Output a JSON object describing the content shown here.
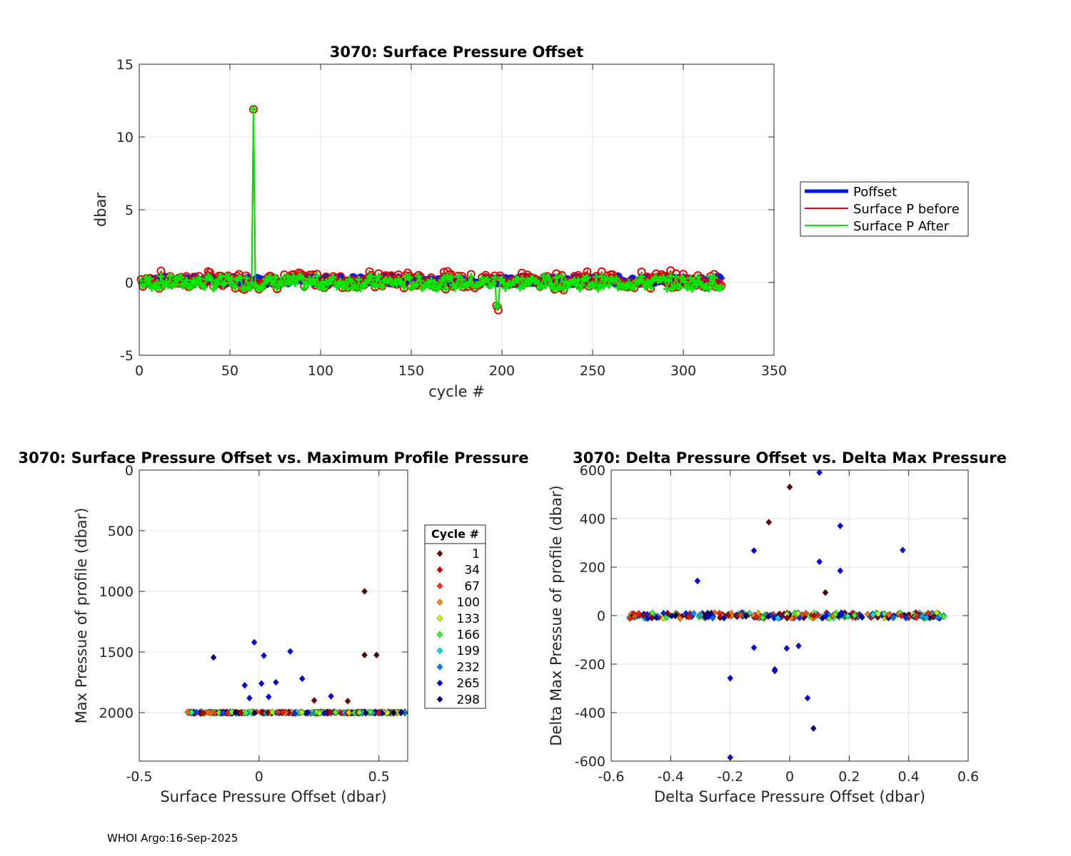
{
  "charts": {
    "top": {
      "type": "line",
      "title": "3070: Surface Pressure Offset",
      "xlabel": "cycle #",
      "ylabel": "dbar",
      "xlim": [
        0,
        350
      ],
      "ylim": [
        -5,
        15
      ],
      "xticks": [
        0,
        50,
        100,
        150,
        200,
        250,
        300,
        350
      ],
      "yticks": [
        -5,
        0,
        5,
        10,
        15
      ],
      "legend": [
        "Poffset",
        "Surface P before",
        "Surface P After"
      ],
      "legend_position": "outside-right",
      "cycle_range": [
        1,
        321
      ],
      "series_colors": [
        "#0018e6",
        "#e60000",
        "#00e600"
      ],
      "spikes": [
        {
          "cycle": 63,
          "value": 11.9
        },
        {
          "cycle": 197,
          "value": -1.6
        },
        {
          "cycle": 198,
          "value": -1.9
        }
      ]
    },
    "bottom_left": {
      "type": "scatter",
      "title": "3070: Surface Pressure Offset vs. Maximum Profile Pressure",
      "xlabel": "Surface Pressure Offset (dbar)",
      "ylabel": "Max Pressue of profile (dbar)",
      "xlim": [
        -0.5,
        0.62
      ],
      "ylim": [
        0,
        2400
      ],
      "y_reversed": true,
      "xticks": [
        -0.5,
        0,
        0.5
      ],
      "yticks": [
        0,
        500,
        1000,
        1500,
        2000
      ],
      "legend_title": "Cycle #",
      "legend": [
        "1",
        "34",
        "67",
        "100",
        "133",
        "166",
        "199",
        "232",
        "265",
        "298"
      ],
      "legend_colors": [
        "#5a0000",
        "#d90000",
        "#ff3300",
        "#ff8c00",
        "#ccff00",
        "#33ff33",
        "#00e5ff",
        "#0080ff",
        "#0000ff",
        "#000080"
      ],
      "outliers": [
        {
          "x": 0.44,
          "y": 1000,
          "cycle": 1
        },
        {
          "x": 0.44,
          "y": 1525,
          "cycle": 1
        },
        {
          "x": 0.49,
          "y": 1525,
          "cycle": 1
        },
        {
          "x": 0.23,
          "y": 1900,
          "cycle": 10
        },
        {
          "x": 0.37,
          "y": 1905,
          "cycle": 10
        },
        {
          "x": -0.19,
          "y": 1545,
          "cycle": 298
        },
        {
          "x": -0.02,
          "y": 1420,
          "cycle": 265
        },
        {
          "x": 0.01,
          "y": 1760,
          "cycle": 265
        },
        {
          "x": 0.02,
          "y": 1530,
          "cycle": 265
        },
        {
          "x": 0.13,
          "y": 1495,
          "cycle": 265
        },
        {
          "x": 0.18,
          "y": 1720,
          "cycle": 265
        },
        {
          "x": 0.3,
          "y": 1865,
          "cycle": 265
        },
        {
          "x": -0.06,
          "y": 1775,
          "cycle": 265
        },
        {
          "x": -0.04,
          "y": 1880,
          "cycle": 265
        },
        {
          "x": 0.04,
          "y": 1870,
          "cycle": 265
        },
        {
          "x": 0.07,
          "y": 1750,
          "cycle": 265
        }
      ],
      "baseline": {
        "y": 2000,
        "x_min": -0.3,
        "x_max": 0.62
      }
    },
    "bottom_right": {
      "type": "scatter",
      "title": "3070: Delta Pressure Offset vs. Delta Max Pressure",
      "xlabel": "Delta Surface Pressure Offset (dbar)",
      "ylabel": "Delta Max Pressue of profile (dbar)",
      "xlim": [
        -0.6,
        0.6
      ],
      "ylim": [
        -600,
        600
      ],
      "xticks": [
        -0.6,
        -0.4,
        -0.2,
        0,
        0.2,
        0.4,
        0.6
      ],
      "yticks": [
        -600,
        -400,
        -200,
        0,
        200,
        400,
        600
      ],
      "outliers": [
        {
          "x": 0.0,
          "y": 530,
          "cycle": 1
        },
        {
          "x": -0.07,
          "y": 385,
          "cycle": 1
        },
        {
          "x": 0.12,
          "y": 95,
          "cycle": 1
        },
        {
          "x": 0.08,
          "y": -465,
          "cycle": 298
        },
        {
          "x": 0.1,
          "y": 590,
          "cycle": 265
        },
        {
          "x": 0.17,
          "y": 370,
          "cycle": 265
        },
        {
          "x": 0.38,
          "y": 270,
          "cycle": 265
        },
        {
          "x": -0.12,
          "y": 268,
          "cycle": 265
        },
        {
          "x": 0.1,
          "y": 222,
          "cycle": 265
        },
        {
          "x": 0.17,
          "y": 185,
          "cycle": 265
        },
        {
          "x": -0.31,
          "y": 143,
          "cycle": 265
        },
        {
          "x": -0.12,
          "y": -132,
          "cycle": 265
        },
        {
          "x": -0.01,
          "y": -135,
          "cycle": 265
        },
        {
          "x": 0.03,
          "y": -125,
          "cycle": 265
        },
        {
          "x": -0.05,
          "y": -222,
          "cycle": 265
        },
        {
          "x": -0.05,
          "y": -228,
          "cycle": 265
        },
        {
          "x": -0.2,
          "y": -258,
          "cycle": 265
        },
        {
          "x": 0.06,
          "y": -340,
          "cycle": 265
        },
        {
          "x": -0.2,
          "y": -585,
          "cycle": 265
        }
      ],
      "baseline": {
        "y": 0,
        "x_min": -0.54,
        "x_max": 0.52
      }
    }
  },
  "footer": "WHOI Argo:16-Sep-2025"
}
